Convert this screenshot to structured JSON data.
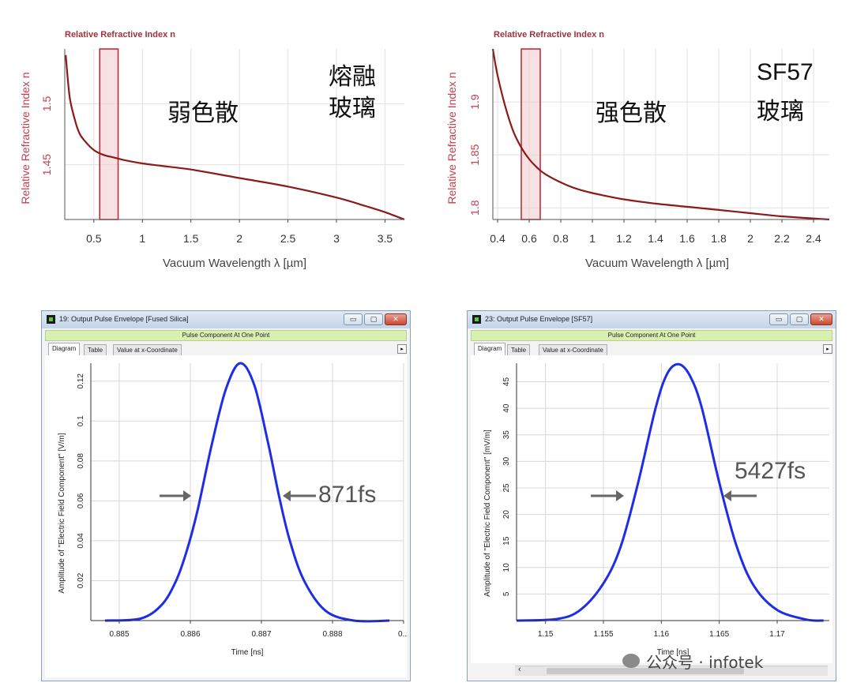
{
  "annotations": {
    "fused_name_line1": "熔融",
    "fused_name_line2": "玻璃",
    "fused_dispersion": "弱色散",
    "sf57_name_line1": "SF57",
    "sf57_name_line2": "玻璃",
    "sf57_dispersion": "强色散",
    "fused_fwhm": "871fs",
    "sf57_fwhm": "5427fs"
  },
  "window_fused": {
    "title": "19: Output Pulse Envelope [Fused Silica]",
    "subtitle": "Pulse Component At One Point",
    "tabs": [
      "Diagram",
      "Table",
      "Value at x-Coordinate"
    ],
    "min_glyph": "▭",
    "max_glyph": "▢",
    "close_glyph": "✕",
    "tab_arrow": "▸"
  },
  "window_sf57": {
    "title": "23: Output Pulse Envelope [SF57]",
    "subtitle": "Pulse Component At One Point",
    "tabs": [
      "Diagram",
      "Table",
      "Value at x-Coordinate"
    ],
    "min_glyph": "▭",
    "max_glyph": "▢",
    "close_glyph": "✕",
    "tab_arrow": "▸",
    "scroll_left": "‹"
  },
  "watermark": "公众号 · infotek",
  "colors": {
    "dispersion_curve": "#8b1a1a",
    "axis_label_red": "#c04050",
    "pulse_curve": "#1e2de6",
    "highlight_fill": "#f2c8cc",
    "highlight_stroke": "#c02030"
  },
  "chart_data": [
    {
      "id": "fused",
      "type": "line",
      "title": "Relative Refractive Index n",
      "xlabel": "Vacuum Wavelength λ [µm]",
      "ylabel": "Relative Refractive Index n",
      "xlim": [
        0.2,
        3.7
      ],
      "ylim": [
        1.405,
        1.545
      ],
      "xticks": [
        "0.5",
        "1",
        "1.5",
        "2",
        "2.5",
        "3",
        "3.5"
      ],
      "yticks": [
        "1.45",
        "1.5"
      ],
      "grid": true,
      "highlight_band": [
        0.56,
        0.75
      ],
      "series": [
        {
          "x": [
            0.21,
            0.25,
            0.3,
            0.35,
            0.4,
            0.5,
            0.6,
            0.7,
            0.8,
            1.0,
            1.2,
            1.5,
            2.0,
            2.5,
            3.0,
            3.3,
            3.5,
            3.7
          ],
          "y": [
            1.54,
            1.506,
            1.488,
            1.476,
            1.47,
            1.462,
            1.458,
            1.456,
            1.454,
            1.451,
            1.449,
            1.446,
            1.439,
            1.432,
            1.423,
            1.416,
            1.411,
            1.405
          ]
        }
      ]
    },
    {
      "id": "sf57",
      "type": "line",
      "title": "Relative Refractive Index n",
      "xlabel": "Vacuum Wavelength λ [µm]",
      "ylabel": "Relative Refractive Index n",
      "xlim": [
        0.37,
        2.5
      ],
      "ylim": [
        1.789,
        1.95
      ],
      "xticks": [
        "0.4",
        "0.6",
        "0.8",
        "1",
        "1.2",
        "1.4",
        "1.6",
        "1.8",
        "2",
        "2.2",
        "2.4"
      ],
      "yticks": [
        "1.8",
        "1.85",
        "1.9"
      ],
      "grid": true,
      "highlight_band": [
        0.55,
        0.67
      ],
      "series": [
        {
          "x": [
            0.37,
            0.4,
            0.45,
            0.5,
            0.55,
            0.6,
            0.65,
            0.7,
            0.8,
            0.9,
            1.0,
            1.2,
            1.4,
            1.6,
            1.8,
            2.0,
            2.2,
            2.5
          ],
          "y": [
            1.95,
            1.925,
            1.895,
            1.872,
            1.857,
            1.846,
            1.838,
            1.832,
            1.824,
            1.818,
            1.814,
            1.808,
            1.804,
            1.801,
            1.798,
            1.795,
            1.792,
            1.789
          ]
        }
      ]
    },
    {
      "id": "pulse_fused",
      "type": "line",
      "xlabel": "Time [ns]",
      "ylabel": "Amplitude of \"Electric Field Component\" [V/m]",
      "xlim": [
        0.8846,
        0.889
      ],
      "ylim": [
        0,
        0.129
      ],
      "xticks": [
        "0.885",
        "0.886",
        "0.887",
        "0.888",
        "0..."
      ],
      "yticks": [
        "0.02",
        "0.04",
        "0.06",
        "0.08",
        "0.1",
        "0.12"
      ],
      "grid": true,
      "series": [
        {
          "x": [
            0.8848,
            0.8853,
            0.8856,
            0.8858,
            0.88595,
            0.8861,
            0.8863,
            0.8865,
            0.8867,
            0.8869,
            0.8871,
            0.88725,
            0.8874,
            0.8876,
            0.8879,
            0.8883,
            0.8888
          ],
          "y": [
            0.0,
            0.001,
            0.008,
            0.02,
            0.035,
            0.055,
            0.088,
            0.116,
            0.129,
            0.118,
            0.088,
            0.062,
            0.04,
            0.02,
            0.005,
            0.0,
            0.0
          ]
        }
      ]
    },
    {
      "id": "pulse_sf57",
      "type": "line",
      "xlabel": "Time [ns]",
      "ylabel": "Amplitude of \"Electric Field Component\" [mV/m]",
      "xlim": [
        1.1475,
        1.1745
      ],
      "ylim": [
        0,
        48.5
      ],
      "xticks": [
        "1.15",
        "1.155",
        "1.16",
        "1.165",
        "1.17"
      ],
      "yticks": [
        "5",
        "10",
        "15",
        "20",
        "25",
        "30",
        "35",
        "40",
        "45"
      ],
      "grid": true,
      "series": [
        {
          "x": [
            1.1475,
            1.151,
            1.153,
            1.155,
            1.1565,
            1.158,
            1.1595,
            1.1605,
            1.1615,
            1.1625,
            1.1635,
            1.165,
            1.1665,
            1.168,
            1.17,
            1.1725,
            1.174
          ],
          "y": [
            0.0,
            0.3,
            2.0,
            7.0,
            14.0,
            26.0,
            40.0,
            46.5,
            48.3,
            46.0,
            40.0,
            26.0,
            14.0,
            6.5,
            2.0,
            0.2,
            0.0
          ]
        }
      ]
    }
  ]
}
